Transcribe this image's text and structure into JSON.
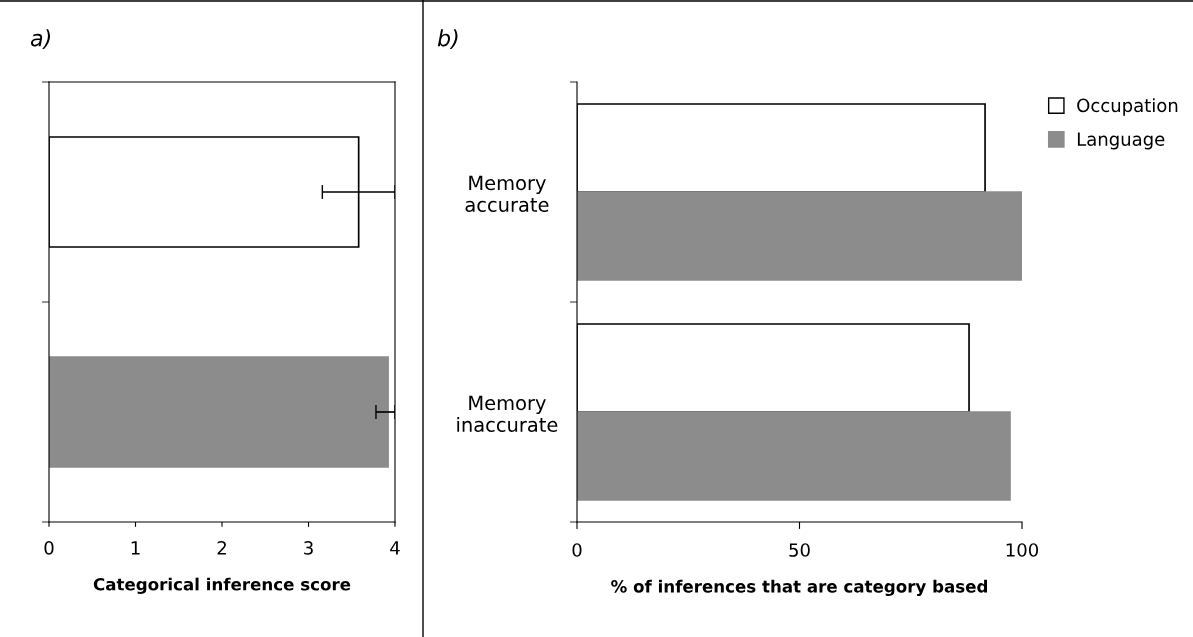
{
  "chart_data": [
    {
      "type": "bar",
      "orientation": "horizontal",
      "annotations": [
        "a)"
      ],
      "xlabel": "Categorical inference score",
      "categories": [
        null,
        null
      ],
      "values": [
        3.58,
        3.92
      ],
      "colors": [
        "#ffffff",
        "#8c8c8c"
      ],
      "errors": [
        [
          3.16,
          4.0
        ],
        [
          3.78,
          4.0
        ]
      ],
      "xlim": [
        0,
        4
      ],
      "xticks": [
        0,
        1,
        2,
        3,
        4
      ],
      "grid": false,
      "legend": false
    },
    {
      "type": "bar",
      "orientation": "horizontal",
      "annotations": [
        "b)"
      ],
      "xlabel": "% of inferences that are category based",
      "categories": [
        "Memory\naccurate",
        "Memory\ninaccurate"
      ],
      "series": [
        {
          "name": "Occupation",
          "color": "#ffffff",
          "values": [
            91.7,
            88.1
          ]
        },
        {
          "name": "Language",
          "color": "#8c8c8c",
          "values": [
            100,
            97.3
          ]
        }
      ],
      "xlim": [
        0,
        100
      ],
      "xticks": [
        0,
        50,
        100
      ],
      "grid": false,
      "legend": "top right"
    }
  ]
}
